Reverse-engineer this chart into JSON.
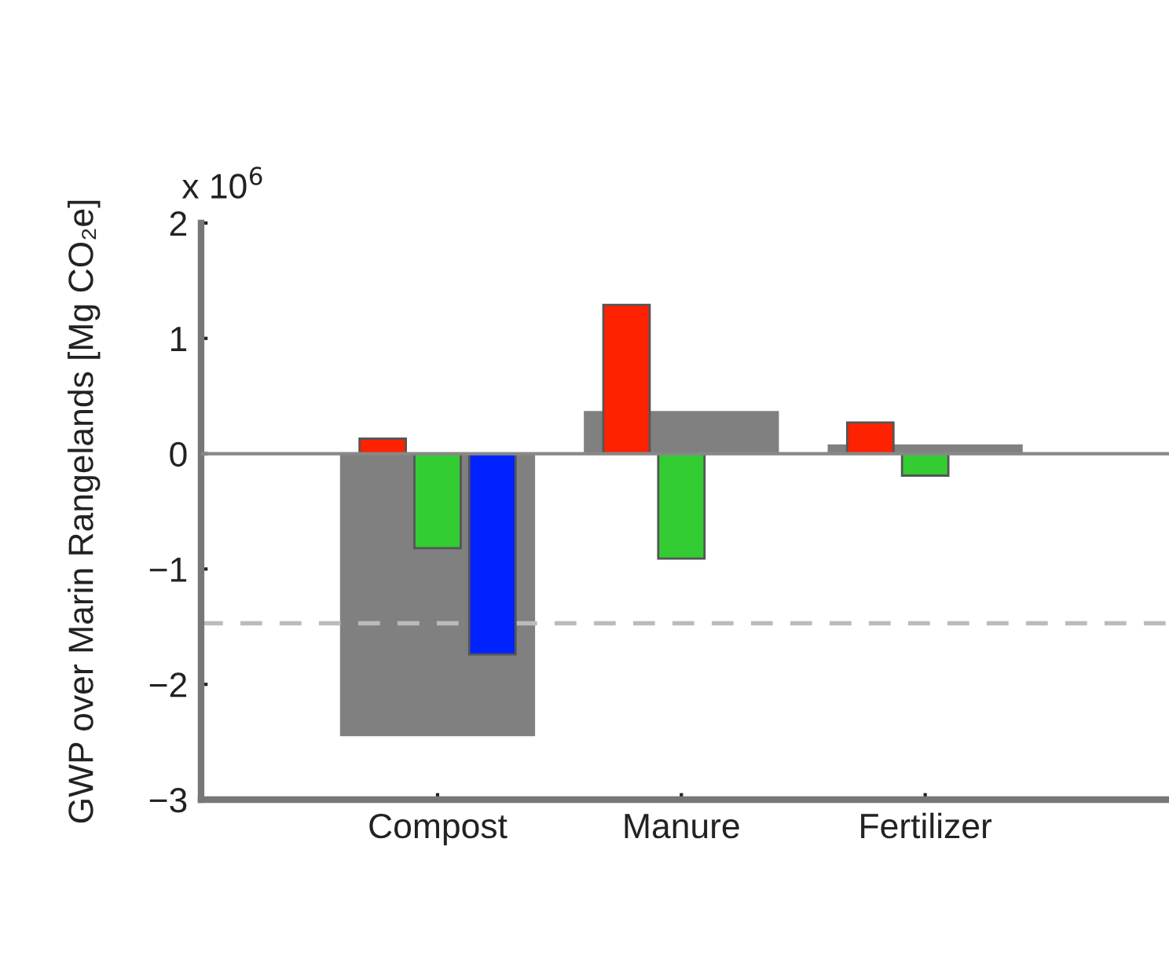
{
  "chart_data": {
    "type": "bar",
    "ylabel": "GWP over Marin Rangelands [Mg CO₂e]",
    "categories": [
      "Compost",
      "Manure",
      "Fertilizer"
    ],
    "series": [
      {
        "color": "#808080",
        "values": [
          -2.45,
          0.37,
          0.08
        ]
      },
      {
        "color": "#ff2200",
        "values": [
          0.13,
          1.29,
          0.27
        ]
      },
      {
        "color": "#33cc33",
        "values": [
          -0.82,
          -0.91,
          -0.19
        ]
      },
      {
        "color": "#0022ff",
        "values": [
          -1.74,
          null,
          null
        ]
      }
    ],
    "ylim": [
      -3,
      2
    ],
    "yticks": [
      {
        "value": -3,
        "label": "−3"
      },
      {
        "value": -2,
        "label": "−2"
      },
      {
        "value": -1,
        "label": "−1"
      },
      0,
      1,
      2
    ],
    "ref_lines": [
      {
        "axis": "y",
        "value": 0,
        "color": "#888888",
        "line_style": "solid"
      },
      {
        "axis": "y",
        "value": -1.47,
        "color": "#bbbbbb",
        "line_style": "dashed"
      }
    ],
    "annotations": [
      "x 10$^{6}$"
    ],
    "grid": false,
    "legend": false
  }
}
